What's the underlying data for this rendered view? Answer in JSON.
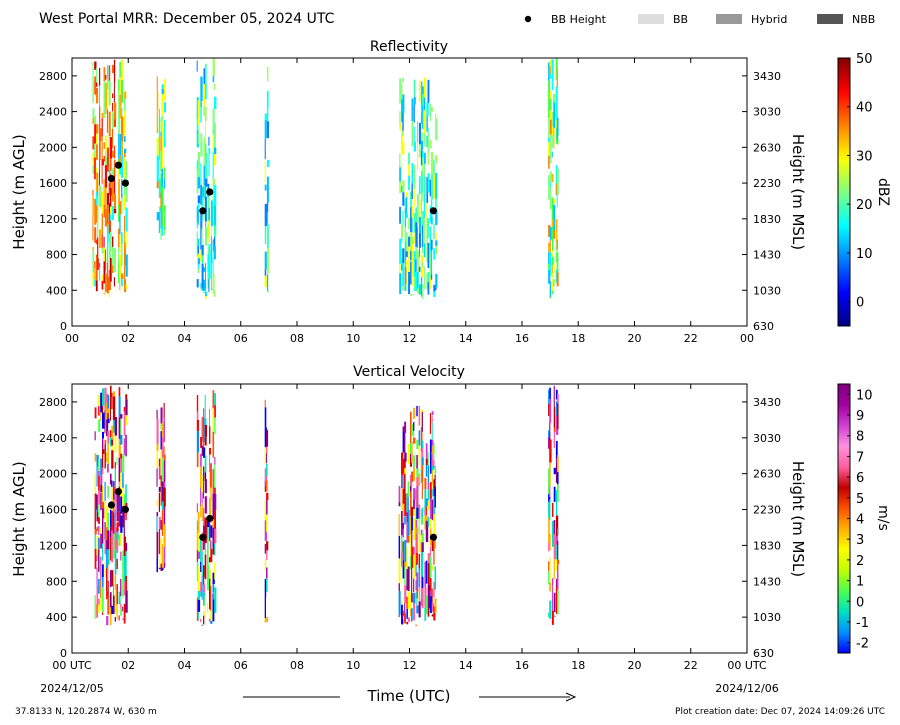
{
  "header": {
    "title": "West Portal MRR:  December 05, 2024 UTC",
    "legend": [
      {
        "label": "BB Height",
        "kind": "dot",
        "color": "#000000"
      },
      {
        "label": "BB",
        "kind": "swatch",
        "color": "#dddddd"
      },
      {
        "label": "Hybrid",
        "kind": "swatch",
        "color": "#999999"
      },
      {
        "label": "NBB",
        "kind": "swatch",
        "color": "#555555"
      }
    ]
  },
  "footer": {
    "location": "37.8133 N, 120.2874 W, 630 m",
    "created": "Plot creation date: Dec 07, 2024 14:09:26 UTC",
    "xlabel": "Time (UTC)",
    "start_date": "2024/12/05",
    "end_date": "2024/12/06"
  },
  "chart_data": [
    {
      "type": "heatmap",
      "title": "Reflectivity",
      "xlabel": "",
      "ylabel": "Height (m AGL)",
      "ylabel_right": "Height (m MSL)",
      "x_ticks": [
        "00",
        "02",
        "04",
        "06",
        "08",
        "10",
        "12",
        "14",
        "16",
        "18",
        "20",
        "22",
        "00"
      ],
      "xlim": [
        0,
        24
      ],
      "y_ticks": [
        0,
        400,
        800,
        1200,
        1600,
        2000,
        2400,
        2800
      ],
      "y_ticks_right": [
        630,
        1030,
        1430,
        1830,
        2230,
        2630,
        3030,
        3430
      ],
      "ylim": [
        0,
        3000
      ],
      "colorbar": {
        "label": "dBZ",
        "ticks": [
          0,
          10,
          20,
          30,
          40,
          50
        ],
        "range": [
          -5,
          50
        ],
        "colors": [
          "#00007f",
          "#0000ff",
          "#0080ff",
          "#00ffff",
          "#80ff80",
          "#ffff00",
          "#ff8000",
          "#ff0000",
          "#7f0000"
        ]
      },
      "echo_columns": [
        {
          "t0": 0.7,
          "t1": 1.15,
          "h0": 300,
          "h1": 3000,
          "palette": "warm"
        },
        {
          "t0": 1.15,
          "t1": 1.55,
          "h0": 300,
          "h1": 3000,
          "palette": "warm"
        },
        {
          "t0": 1.6,
          "t1": 1.95,
          "h0": 300,
          "h1": 3000,
          "palette": "mixed"
        },
        {
          "t0": 3.0,
          "t1": 3.3,
          "h0": 900,
          "h1": 2800,
          "palette": "mixed"
        },
        {
          "t0": 4.4,
          "t1": 5.1,
          "h0": 300,
          "h1": 3000,
          "palette": "cool"
        },
        {
          "t0": 6.85,
          "t1": 6.95,
          "h0": 300,
          "h1": 3000,
          "palette": "cool"
        },
        {
          "t0": 11.6,
          "t1": 12.95,
          "h0": 300,
          "h1": 2800,
          "palette": "cool"
        },
        {
          "t0": 16.9,
          "t1": 17.3,
          "h0": 300,
          "h1": 3000,
          "palette": "mixed"
        }
      ],
      "bb_height": [
        {
          "t": 1.4,
          "h": 1650
        },
        {
          "t": 1.65,
          "h": 1800
        },
        {
          "t": 1.9,
          "h": 1600
        },
        {
          "t": 4.65,
          "h": 1290
        },
        {
          "t": 4.9,
          "h": 1500
        },
        {
          "t": 12.85,
          "h": 1290
        }
      ]
    },
    {
      "type": "heatmap",
      "title": "Vertical Velocity",
      "xlabel": "Time (UTC)",
      "ylabel": "Height (m AGL)",
      "ylabel_right": "Height (m MSL)",
      "x_ticks": [
        "00 UTC",
        "02",
        "04",
        "06",
        "08",
        "10",
        "12",
        "14",
        "16",
        "18",
        "20",
        "22",
        "00 UTC"
      ],
      "xlim": [
        0,
        24
      ],
      "y_ticks": [
        0,
        400,
        800,
        1200,
        1600,
        2000,
        2400,
        2800
      ],
      "y_ticks_right": [
        630,
        1030,
        1430,
        1830,
        2230,
        2630,
        3030,
        3430
      ],
      "ylim": [
        0,
        3000
      ],
      "colorbar": {
        "label": "m/s",
        "ticks": [
          -2,
          -1,
          0,
          1,
          2,
          3,
          4,
          5,
          6,
          7,
          8,
          9,
          10
        ],
        "range": [
          -2.5,
          10.5
        ],
        "colors": [
          "#0000ff",
          "#0090ff",
          "#00e0c0",
          "#50ff50",
          "#c0ff00",
          "#ffff00",
          "#ffb000",
          "#ff5000",
          "#c00000",
          "#ff60a0",
          "#ff90e0",
          "#d040d0",
          "#a000a0",
          "#800080"
        ]
      },
      "echo_columns": [
        {
          "t0": 0.8,
          "t1": 1.95,
          "h0": 300,
          "h1": 3000,
          "palette": "velocity"
        },
        {
          "t0": 3.0,
          "t1": 3.3,
          "h0": 900,
          "h1": 2800,
          "palette": "velocity"
        },
        {
          "t0": 4.4,
          "t1": 5.1,
          "h0": 300,
          "h1": 3000,
          "palette": "velocity"
        },
        {
          "t0": 6.85,
          "t1": 6.95,
          "h0": 300,
          "h1": 3000,
          "palette": "velocity"
        },
        {
          "t0": 11.6,
          "t1": 12.95,
          "h0": 300,
          "h1": 2800,
          "palette": "velocity"
        },
        {
          "t0": 16.9,
          "t1": 17.3,
          "h0": 300,
          "h1": 3000,
          "palette": "velocity"
        }
      ],
      "bb_height": [
        {
          "t": 1.4,
          "h": 1650
        },
        {
          "t": 1.65,
          "h": 1800
        },
        {
          "t": 1.9,
          "h": 1600
        },
        {
          "t": 4.65,
          "h": 1290
        },
        {
          "t": 4.9,
          "h": 1500
        },
        {
          "t": 12.85,
          "h": 1290
        }
      ]
    }
  ]
}
